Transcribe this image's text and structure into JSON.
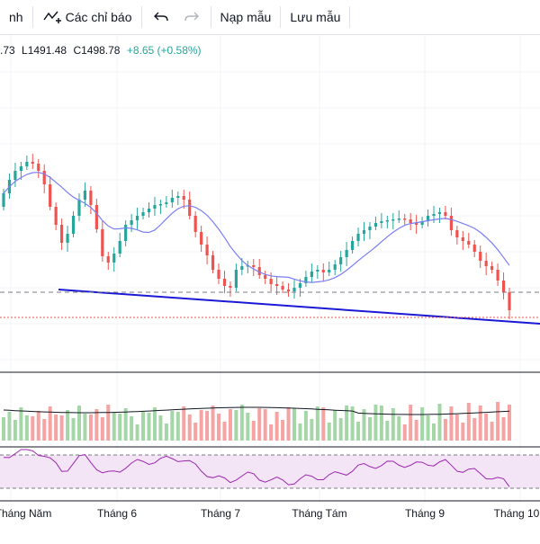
{
  "toolbar": {
    "interval_partial": "nh",
    "indicators_label": "Các chỉ báo",
    "load_template_label": "Nạp mẫu",
    "save_template_label": "Lưu mẫu"
  },
  "ohlc": {
    "open_partial": ".73",
    "low": "L1491.48",
    "close": "C1498.78",
    "change": "+8.65 (+0.58%)",
    "change_color": "#26a69a"
  },
  "colors": {
    "up": "#26a69a",
    "down": "#ef5350",
    "ma_line": "#7b7ff0",
    "trendline": "#1a1ad6",
    "rsi_line": "#9c27b0",
    "rsi_band": "#f3e5f5",
    "volume_ma": "#131722"
  },
  "chart_data": {
    "type": "candlestick",
    "x_axis_labels": [
      "Tháng Năm",
      "Tháng 6",
      "Tháng 7",
      "Tháng Tám",
      "Tháng 9",
      "Tháng 10"
    ],
    "price_levels": {
      "prior_close_dashed": 1491,
      "last_close_dotted": 1467
    },
    "indicators": [
      "MA",
      "Volume",
      "RSI"
    ]
  }
}
